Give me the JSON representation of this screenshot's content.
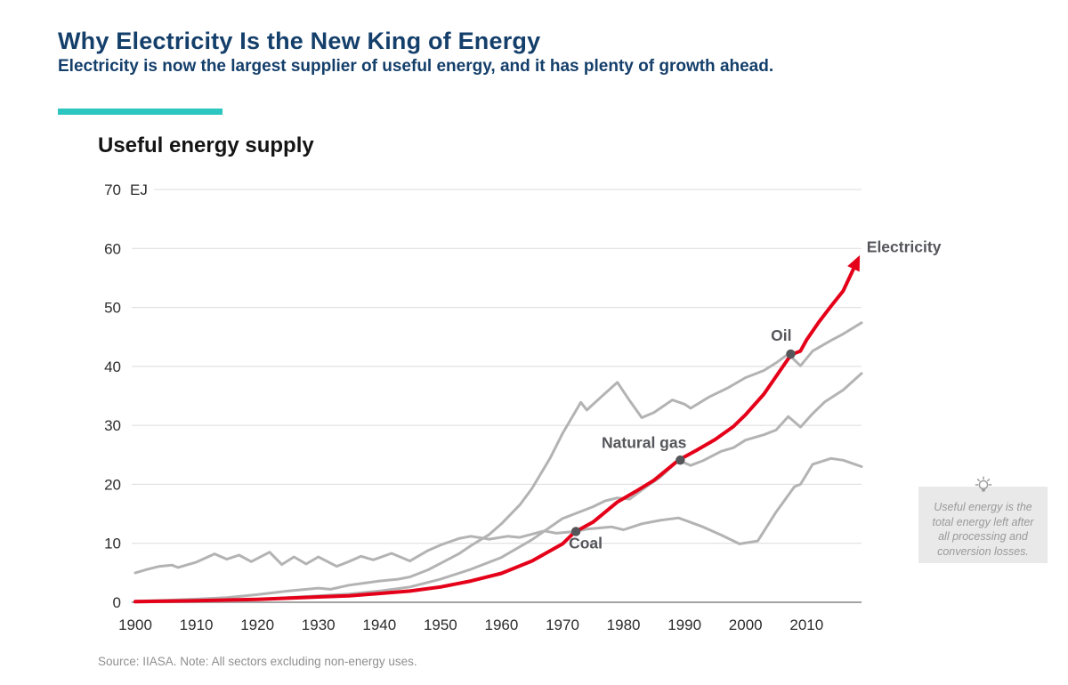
{
  "header": {
    "title": "Why Electricity Is the New King of Energy",
    "subtitle": "Electricity is now the largest supplier of useful energy, and it has plenty of growth ahead.",
    "accent_color": "#2cc5bf",
    "title_color": "#143f6b"
  },
  "chart_data": {
    "type": "line",
    "title": "Useful energy supply",
    "unit": "EJ",
    "xlabel": "",
    "ylabel": "EJ",
    "ylim": [
      0,
      70
    ],
    "yticks": [
      0,
      10,
      20,
      30,
      40,
      50,
      60,
      70
    ],
    "xrange": [
      1900,
      2019
    ],
    "xticks": [
      1900,
      1910,
      1920,
      1930,
      1940,
      1950,
      1960,
      1970,
      1980,
      1990,
      2000,
      2010
    ],
    "grid": "horizontal",
    "legend": "direct-labels",
    "gridline_color": "#dcdcdc",
    "baseline_color": "#a4a4a4",
    "marker_color": "#56565a",
    "series": [
      {
        "name": "Coal",
        "color": "#b3b3b3",
        "points": [
          [
            1900,
            5.0
          ],
          [
            1902,
            5.6
          ],
          [
            1904,
            6.1
          ],
          [
            1906,
            6.3
          ],
          [
            1907,
            5.9
          ],
          [
            1910,
            6.8
          ],
          [
            1913,
            8.2
          ],
          [
            1915,
            7.3
          ],
          [
            1917,
            8.0
          ],
          [
            1919,
            6.9
          ],
          [
            1922,
            8.5
          ],
          [
            1924,
            6.4
          ],
          [
            1926,
            7.7
          ],
          [
            1928,
            6.5
          ],
          [
            1930,
            7.7
          ],
          [
            1933,
            6.1
          ],
          [
            1935,
            6.9
          ],
          [
            1937,
            7.8
          ],
          [
            1939,
            7.2
          ],
          [
            1942,
            8.3
          ],
          [
            1945,
            7.0
          ],
          [
            1948,
            8.8
          ],
          [
            1950,
            9.7
          ],
          [
            1953,
            10.8
          ],
          [
            1955,
            11.2
          ],
          [
            1958,
            10.7
          ],
          [
            1961,
            11.2
          ],
          [
            1963,
            11.0
          ],
          [
            1967,
            12.1
          ],
          [
            1969,
            11.7
          ],
          [
            1972,
            12.0
          ],
          [
            1974,
            12.4
          ],
          [
            1978,
            12.8
          ],
          [
            1980,
            12.3
          ],
          [
            1983,
            13.3
          ],
          [
            1986,
            13.9
          ],
          [
            1989,
            14.3
          ],
          [
            1993,
            12.8
          ],
          [
            1996,
            11.4
          ],
          [
            1999,
            9.9
          ],
          [
            2002,
            10.4
          ],
          [
            2005,
            15.3
          ],
          [
            2008,
            19.6
          ],
          [
            2009,
            20.0
          ],
          [
            2011,
            23.4
          ],
          [
            2014,
            24.4
          ],
          [
            2016,
            24.1
          ],
          [
            2019,
            23.0
          ]
        ]
      },
      {
        "name": "Oil",
        "color": "#b3b3b3",
        "points": [
          [
            1900,
            0.2
          ],
          [
            1905,
            0.35
          ],
          [
            1910,
            0.55
          ],
          [
            1915,
            0.8
          ],
          [
            1920,
            1.3
          ],
          [
            1925,
            1.9
          ],
          [
            1930,
            2.4
          ],
          [
            1932,
            2.2
          ],
          [
            1935,
            2.9
          ],
          [
            1940,
            3.6
          ],
          [
            1943,
            3.9
          ],
          [
            1945,
            4.3
          ],
          [
            1948,
            5.5
          ],
          [
            1950,
            6.6
          ],
          [
            1953,
            8.2
          ],
          [
            1955,
            9.6
          ],
          [
            1958,
            11.5
          ],
          [
            1960,
            13.3
          ],
          [
            1963,
            16.5
          ],
          [
            1965,
            19.3
          ],
          [
            1968,
            24.5
          ],
          [
            1970,
            28.6
          ],
          [
            1973,
            33.9
          ],
          [
            1974,
            32.6
          ],
          [
            1976,
            34.5
          ],
          [
            1979,
            37.3
          ],
          [
            1981,
            34.2
          ],
          [
            1983,
            31.3
          ],
          [
            1985,
            32.2
          ],
          [
            1988,
            34.3
          ],
          [
            1990,
            33.6
          ],
          [
            1991,
            32.9
          ],
          [
            1994,
            34.8
          ],
          [
            1997,
            36.3
          ],
          [
            2000,
            38.1
          ],
          [
            2003,
            39.3
          ],
          [
            2005,
            40.6
          ],
          [
            2007,
            42.1
          ],
          [
            2009,
            40.1
          ],
          [
            2011,
            42.6
          ],
          [
            2014,
            44.4
          ],
          [
            2016,
            45.5
          ],
          [
            2019,
            47.4
          ]
        ]
      },
      {
        "name": "Natural gas",
        "color": "#b3b3b3",
        "points": [
          [
            1900,
            0.05
          ],
          [
            1910,
            0.2
          ],
          [
            1920,
            0.5
          ],
          [
            1925,
            0.8
          ],
          [
            1930,
            1.1
          ],
          [
            1935,
            1.4
          ],
          [
            1940,
            1.9
          ],
          [
            1945,
            2.6
          ],
          [
            1950,
            3.9
          ],
          [
            1955,
            5.6
          ],
          [
            1960,
            7.6
          ],
          [
            1965,
            10.6
          ],
          [
            1970,
            14.2
          ],
          [
            1972,
            15.0
          ],
          [
            1975,
            16.2
          ],
          [
            1977,
            17.2
          ],
          [
            1979,
            17.7
          ],
          [
            1981,
            17.5
          ],
          [
            1984,
            19.8
          ],
          [
            1986,
            21.2
          ],
          [
            1989,
            24.1
          ],
          [
            1991,
            23.2
          ],
          [
            1993,
            24.0
          ],
          [
            1996,
            25.6
          ],
          [
            1998,
            26.2
          ],
          [
            2000,
            27.5
          ],
          [
            2003,
            28.4
          ],
          [
            2005,
            29.2
          ],
          [
            2007,
            31.5
          ],
          [
            2009,
            29.7
          ],
          [
            2011,
            32.0
          ],
          [
            2013,
            34.0
          ],
          [
            2016,
            36.0
          ],
          [
            2019,
            38.8
          ]
        ]
      },
      {
        "name": "Electricity",
        "color": "#e50019",
        "arrow_end": true,
        "points": [
          [
            1900,
            0.1
          ],
          [
            1910,
            0.25
          ],
          [
            1920,
            0.5
          ],
          [
            1925,
            0.7
          ],
          [
            1930,
            0.9
          ],
          [
            1935,
            1.1
          ],
          [
            1940,
            1.5
          ],
          [
            1945,
            1.9
          ],
          [
            1950,
            2.6
          ],
          [
            1955,
            3.6
          ],
          [
            1960,
            4.9
          ],
          [
            1965,
            7.0
          ],
          [
            1970,
            9.9
          ],
          [
            1972,
            11.9
          ],
          [
            1975,
            13.6
          ],
          [
            1979,
            17.0
          ],
          [
            1982,
            18.8
          ],
          [
            1985,
            20.7
          ],
          [
            1989,
            24.1
          ],
          [
            1992,
            25.8
          ],
          [
            1995,
            27.6
          ],
          [
            1998,
            29.8
          ],
          [
            2000,
            31.8
          ],
          [
            2003,
            35.3
          ],
          [
            2005,
            38.3
          ],
          [
            2007,
            41.3
          ],
          [
            2008,
            42.2
          ],
          [
            2009,
            42.6
          ],
          [
            2010,
            44.5
          ],
          [
            2012,
            47.5
          ],
          [
            2014,
            50.2
          ],
          [
            2016,
            52.8
          ],
          [
            2017.8,
            56.8
          ]
        ]
      }
    ],
    "markers": [
      {
        "series": "Coal",
        "year": 1972.2,
        "value": 12.0
      },
      {
        "series": "Natural gas",
        "year": 1989.3,
        "value": 24.1
      },
      {
        "series": "Oil",
        "year": 2007.4,
        "value": 42.1
      }
    ],
    "annotations": [
      {
        "text": "Coal",
        "year": 1972.2,
        "value": 12.0,
        "color": "#55565b"
      },
      {
        "text": "Natural gas",
        "year": 1989.3,
        "value": 24.1,
        "color": "#55565b"
      },
      {
        "text": "Oil",
        "year": 2007.4,
        "value": 42.1,
        "color": "#55565b"
      },
      {
        "text": "Electricity",
        "year": 2017.8,
        "value": 56.8,
        "color": "#e50019"
      }
    ]
  },
  "callout": {
    "icon": "lightbulb-icon",
    "text": "Useful energy is the total energy left after all processing and conversion losses."
  },
  "footer": {
    "source_note": "Source: IIASA. Note: All sectors excluding non-energy uses."
  }
}
